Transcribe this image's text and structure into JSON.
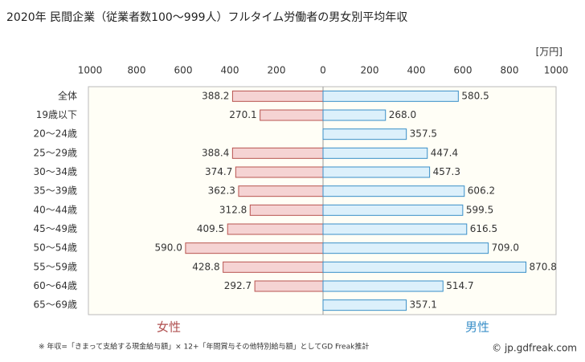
{
  "chart_data": {
    "type": "butterfly",
    "title": "2020年 民間企業（従業者数100～999人）フルタイム労働者の男女別平均年収",
    "unit": "[万円]",
    "categories": [
      "全体",
      "19歳以下",
      "20～24歳",
      "25～29歳",
      "30～34歳",
      "35～39歳",
      "40～44歳",
      "45～49歳",
      "50～54歳",
      "55～59歳",
      "60～64歳",
      "65～69歳"
    ],
    "series": [
      {
        "name": "女性",
        "color": "#f5d3d3",
        "stroke": "#b85450",
        "text_color": "#b05050",
        "side": "left",
        "values": [
          388.2,
          270.1,
          null,
          388.4,
          374.7,
          362.3,
          312.8,
          409.5,
          590.0,
          428.8,
          292.7,
          null
        ],
        "value_labels": [
          "388.2",
          "270.1",
          null,
          "388.4",
          "374.7",
          "362.3",
          "312.8",
          "409.5",
          "590.0",
          "428.8",
          "292.7",
          null
        ]
      },
      {
        "name": "男性",
        "color": "#dcf0fb",
        "stroke": "#3a8fc8",
        "text_color": "#3a8fc8",
        "side": "right",
        "values": [
          580.5,
          268.0,
          357.5,
          447.4,
          457.3,
          606.2,
          599.5,
          616.5,
          709.0,
          870.8,
          514.7,
          357.1
        ],
        "value_labels": [
          "580.5",
          "268.0",
          "357.5",
          "447.4",
          "457.3",
          "606.2",
          "599.5",
          "616.5",
          "709.0",
          "870.8",
          "514.7",
          "357.1"
        ]
      }
    ],
    "xlim": [
      0,
      1000
    ],
    "xticks": [
      0,
      200,
      400,
      600,
      800,
      1000
    ],
    "footnote": "※ 年収=「きまって支給する現金給与額」× 12+「年間賞与その他特別給与額」としてGD Freak推計",
    "source": "© jp.gdfreak.com"
  }
}
